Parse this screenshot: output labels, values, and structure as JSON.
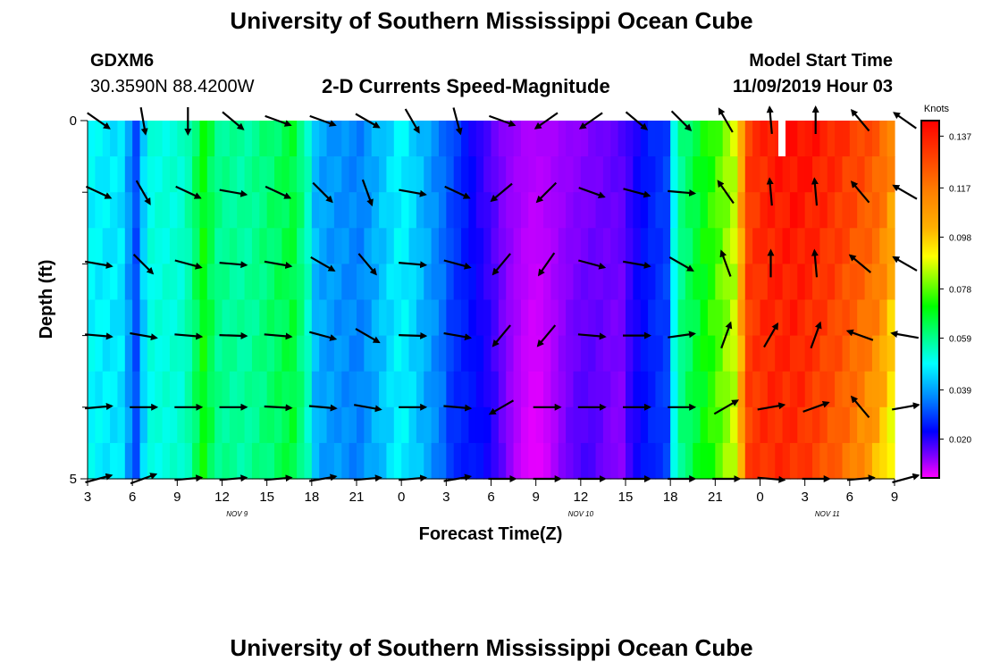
{
  "page": {
    "title_top": "University of Southern Mississippi Ocean Cube",
    "title_bottom": "University of Southern Mississippi Ocean Cube",
    "station_name": "GDXM6",
    "station_coords": "30.3590N 88.4200W",
    "chart_subtitle": "2-D Currents Speed-Magnitude",
    "model_start_label": "Model Start Time",
    "model_start_value": "11/09/2019 Hour 03"
  },
  "colors": {
    "arrow": "#000000",
    "axis": "#000000",
    "gap_marker": "#ffffff"
  },
  "chart_data": {
    "type": "heatmap",
    "title": "2-D Currents Speed-Magnitude",
    "xlabel": "Forecast Time(Z)",
    "ylabel": "Depth (ft)",
    "colorbar_units": "Knots",
    "colorbar_ticks": [
      "0.137",
      "0.117",
      "0.098",
      "0.078",
      "0.059",
      "0.039",
      "0.020"
    ],
    "colorbar_range": [
      0.005,
      0.143
    ],
    "x_hours_range": [
      0,
      54
    ],
    "x_ticks": [
      "3",
      "6",
      "9",
      "12",
      "15",
      "18",
      "21",
      "0",
      "3",
      "6",
      "9",
      "12",
      "15",
      "18",
      "21",
      "0",
      "3",
      "6",
      "9"
    ],
    "date_labels": [
      {
        "label": "NOV 9",
        "hour": 10
      },
      {
        "label": "NOV 10",
        "hour": 33
      },
      {
        "label": "NOV 11",
        "hour": 49.5
      }
    ],
    "y_ticks": [
      "0",
      "5"
    ],
    "y_range": [
      0,
      5
    ],
    "depth_levels": [
      0.25,
      0.75,
      1.25,
      1.75,
      2.25,
      2.75,
      3.25,
      3.75,
      4.25,
      4.75
    ],
    "speed_profile": [
      {
        "hour": 0,
        "speed": 0.039
      },
      {
        "hour": 2.4,
        "speed": 0.037
      },
      {
        "hour": 3.2,
        "speed": 0.025
      },
      {
        "hour": 4.0,
        "speed": 0.041
      },
      {
        "hour": 6.5,
        "speed": 0.043
      },
      {
        "hour": 7.8,
        "speed": 0.059
      },
      {
        "hour": 8.6,
        "speed": 0.049
      },
      {
        "hour": 10.5,
        "speed": 0.047
      },
      {
        "hour": 13.8,
        "speed": 0.055
      },
      {
        "hour": 14.6,
        "speed": 0.047
      },
      {
        "hour": 15.3,
        "speed": 0.033
      },
      {
        "hour": 18.2,
        "speed": 0.03
      },
      {
        "hour": 21.0,
        "speed": 0.039
      },
      {
        "hour": 24.0,
        "speed": 0.028
      },
      {
        "hour": 26.0,
        "speed": 0.018
      },
      {
        "hour": 28.0,
        "speed": 0.012
      },
      {
        "hour": 30.0,
        "speed": 0.01
      },
      {
        "hour": 33.0,
        "speed": 0.012
      },
      {
        "hour": 36.0,
        "speed": 0.016
      },
      {
        "hour": 37.5,
        "speed": 0.022
      },
      {
        "hour": 38.8,
        "speed": 0.025
      },
      {
        "hour": 39.5,
        "speed": 0.048
      },
      {
        "hour": 42.0,
        "speed": 0.063
      },
      {
        "hour": 43.5,
        "speed": 0.075
      },
      {
        "hour": 44.2,
        "speed": 0.118
      },
      {
        "hour": 45.5,
        "speed": 0.128
      },
      {
        "hour": 47.5,
        "speed": 0.134
      },
      {
        "hour": 50.0,
        "speed": 0.126
      },
      {
        "hour": 53.0,
        "speed": 0.11
      },
      {
        "hour": 54.0,
        "speed": 0.095
      }
    ],
    "arrow_hours": [
      0,
      3,
      6,
      9,
      12,
      15,
      18,
      21,
      24,
      27,
      30,
      33,
      36,
      39,
      42,
      45,
      48,
      51,
      54
    ],
    "arrow_depths": [
      0,
      1,
      2,
      3,
      4,
      5
    ],
    "arrow_angles_deg": [
      [
        35,
        80,
        90,
        40,
        20,
        20,
        30,
        60,
        75,
        20,
        145,
        145,
        40,
        45
      ],
      [
        25,
        60,
        25,
        10,
        25,
        45,
        70,
        10,
        25,
        140,
        135,
        20,
        15,
        5
      ],
      [
        10,
        45,
        15,
        5,
        10,
        30,
        50,
        5,
        15,
        130,
        125,
        15,
        10,
        30
      ],
      [
        5,
        10,
        5,
        2,
        5,
        15,
        30,
        2,
        10,
        130,
        130,
        5,
        0,
        -8
      ],
      [
        -5,
        0,
        0,
        0,
        3,
        5,
        10,
        0,
        5,
        150,
        0,
        0,
        0,
        0
      ],
      [
        -15,
        -20,
        -5,
        -5,
        -5,
        -10,
        -5,
        -5,
        -10,
        0,
        0,
        0,
        0,
        0
      ]
    ],
    "arrow_angles_late_deg": [
      [
        -120,
        -95,
        -90,
        -130,
        -145
      ],
      [
        -125,
        -95,
        -95,
        -130,
        -150
      ],
      [
        -110,
        -90,
        -95,
        -140,
        -150
      ],
      [
        -70,
        -60,
        -70,
        -160,
        -170
      ],
      [
        -30,
        -10,
        -20,
        -130,
        -10
      ],
      [
        0,
        5,
        0,
        -5,
        -15
      ]
    ]
  }
}
